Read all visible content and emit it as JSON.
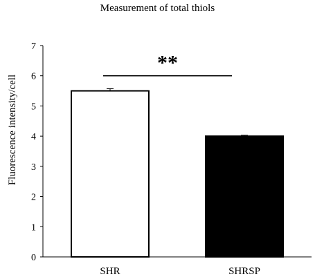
{
  "chart_data": {
    "type": "bar",
    "title": "Measurement of total thiols",
    "xlabel": "",
    "ylabel": "Fluorescence intensity/cell",
    "ylim": [
      0,
      7
    ],
    "yticks": [
      0,
      1,
      2,
      3,
      4,
      5,
      6,
      7
    ],
    "categories": [
      "SHR",
      "SHRSP"
    ],
    "values": [
      5.5,
      4.0
    ],
    "errors": [
      0.07,
      0.03
    ],
    "bar_colors": [
      "#ffffff",
      "#000000"
    ],
    "significance": {
      "label": "**",
      "between": [
        "SHR",
        "SHRSP"
      ]
    },
    "grid": false
  }
}
